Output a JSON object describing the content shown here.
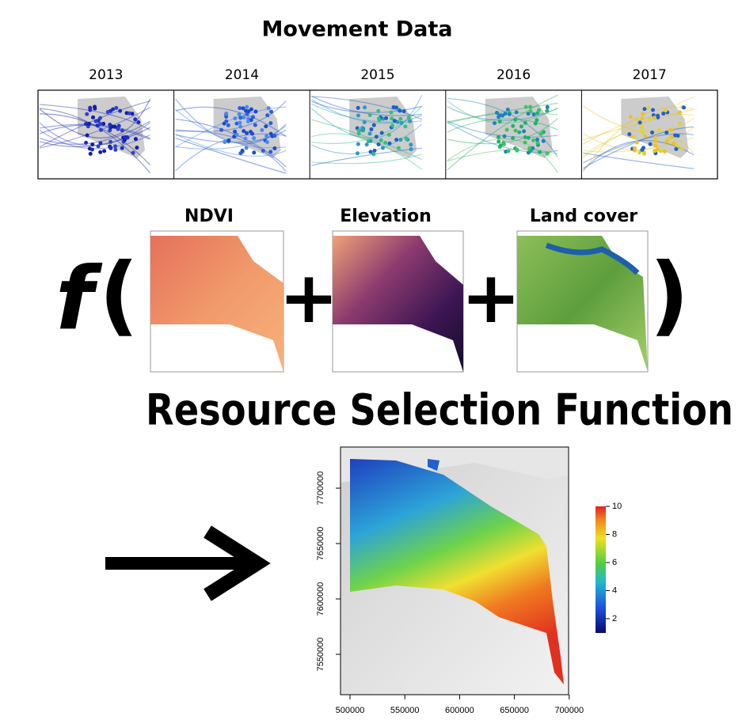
{
  "header": {
    "title": "Movement Data"
  },
  "years": [
    "2013",
    "2014",
    "2015",
    "2016",
    "2017"
  ],
  "covariates": [
    "NDVI",
    "Elevation",
    "Land cover"
  ],
  "formula": {
    "function": "f",
    "open": "(",
    "plus": "+",
    "close": ")"
  },
  "result": {
    "title": "Resource Selection Function",
    "x_ticks": [
      "500000",
      "550000",
      "600000",
      "650000",
      "700000"
    ],
    "y_ticks": [
      "7700000",
      "7650000",
      "7600000",
      "7550000"
    ],
    "legend_ticks": [
      "10",
      "8",
      "6",
      "4",
      "2"
    ]
  }
}
